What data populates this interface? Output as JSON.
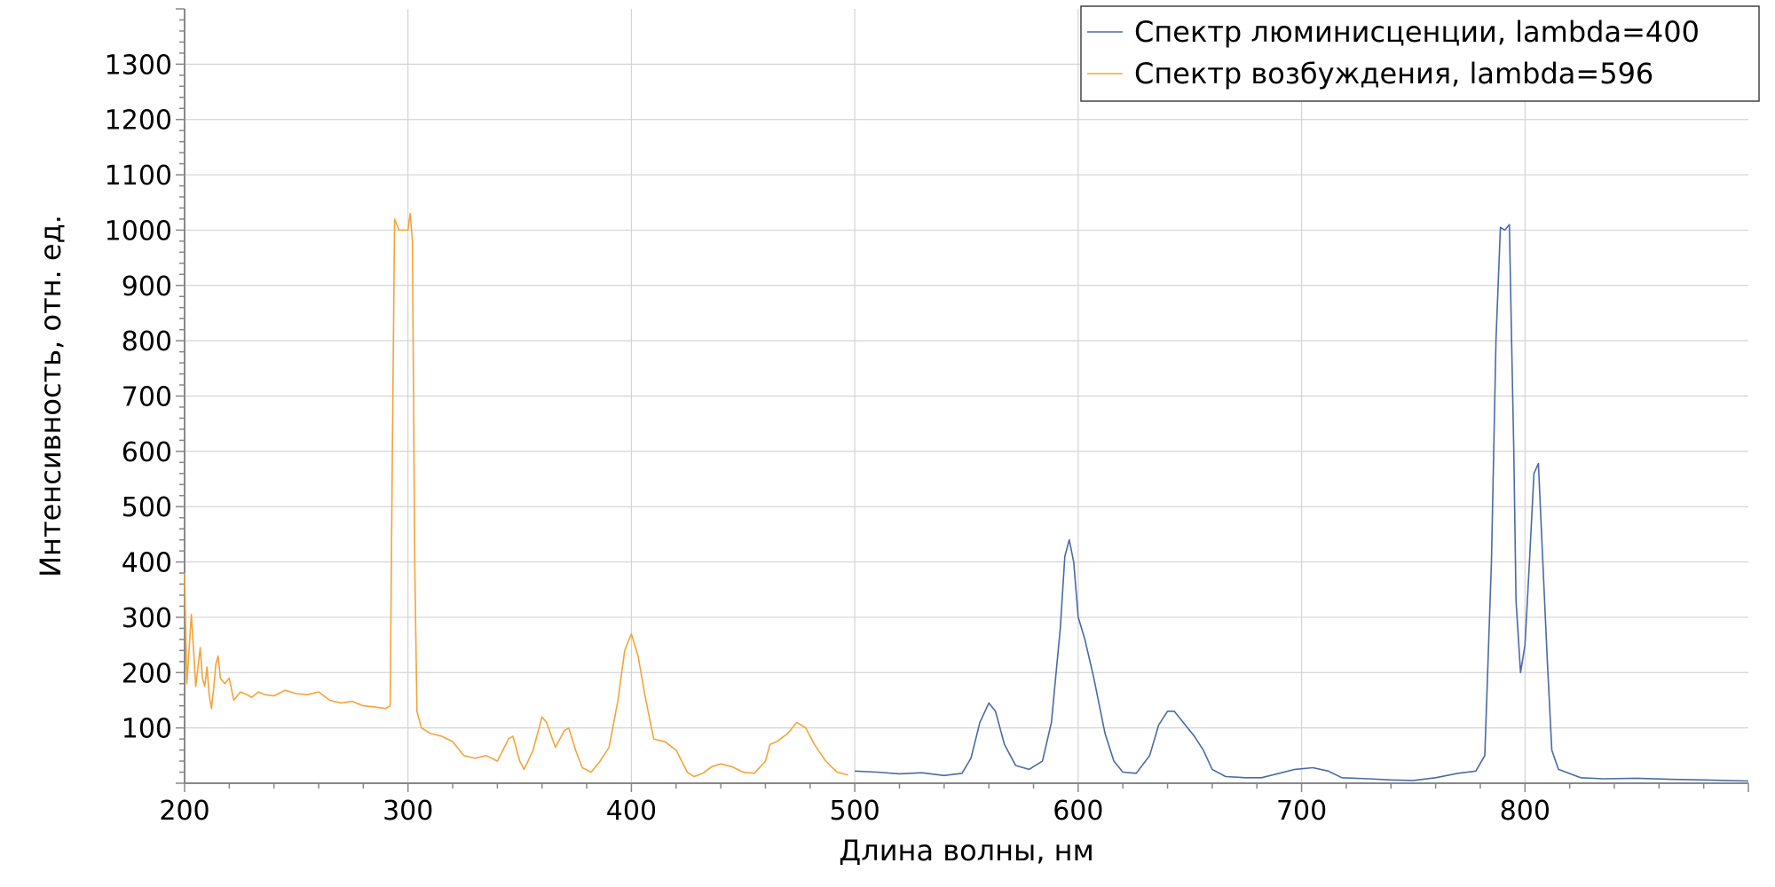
{
  "chart_data": {
    "type": "line",
    "title": "",
    "xlabel": "Длина волны, нм",
    "ylabel": "Интенсивность, отн. ед.",
    "xlim": [
      200,
      900
    ],
    "ylim": [
      0,
      1400
    ],
    "x_ticks": [
      200,
      300,
      400,
      500,
      600,
      700,
      800
    ],
    "y_ticks": [
      100,
      200,
      300,
      400,
      500,
      600,
      700,
      800,
      900,
      1000,
      1100,
      1200,
      1300
    ],
    "grid": true,
    "legend_position": "top-right",
    "series": [
      {
        "name": "Спектр люминисценции, lambda=400",
        "color": "#4a6aa5",
        "points": [
          [
            500,
            22
          ],
          [
            510,
            20
          ],
          [
            520,
            17
          ],
          [
            530,
            19
          ],
          [
            540,
            14
          ],
          [
            548,
            18
          ],
          [
            552,
            45
          ],
          [
            556,
            110
          ],
          [
            560,
            145
          ],
          [
            563,
            130
          ],
          [
            567,
            70
          ],
          [
            572,
            32
          ],
          [
            578,
            25
          ],
          [
            584,
            40
          ],
          [
            588,
            110
          ],
          [
            592,
            280
          ],
          [
            594,
            410
          ],
          [
            596,
            440
          ],
          [
            598,
            400
          ],
          [
            600,
            300
          ],
          [
            603,
            260
          ],
          [
            607,
            190
          ],
          [
            612,
            90
          ],
          [
            616,
            40
          ],
          [
            620,
            20
          ],
          [
            626,
            18
          ],
          [
            632,
            50
          ],
          [
            636,
            105
          ],
          [
            640,
            130
          ],
          [
            643,
            130
          ],
          [
            647,
            110
          ],
          [
            652,
            85
          ],
          [
            656,
            60
          ],
          [
            660,
            25
          ],
          [
            666,
            12
          ],
          [
            675,
            10
          ],
          [
            682,
            10
          ],
          [
            690,
            18
          ],
          [
            697,
            25
          ],
          [
            705,
            28
          ],
          [
            712,
            22
          ],
          [
            718,
            10
          ],
          [
            730,
            8
          ],
          [
            740,
            6
          ],
          [
            750,
            5
          ],
          [
            760,
            10
          ],
          [
            770,
            18
          ],
          [
            778,
            22
          ],
          [
            782,
            50
          ],
          [
            785,
            400
          ],
          [
            787,
            800
          ],
          [
            789,
            1005
          ],
          [
            791,
            1000
          ],
          [
            793,
            1010
          ],
          [
            794,
            800
          ],
          [
            795,
            600
          ],
          [
            796,
            330
          ],
          [
            798,
            200
          ],
          [
            800,
            250
          ],
          [
            802,
            400
          ],
          [
            804,
            560
          ],
          [
            806,
            578
          ],
          [
            808,
            400
          ],
          [
            810,
            220
          ],
          [
            812,
            60
          ],
          [
            815,
            25
          ],
          [
            825,
            10
          ],
          [
            835,
            8
          ],
          [
            850,
            9
          ],
          [
            865,
            7
          ],
          [
            880,
            6
          ],
          [
            890,
            5
          ],
          [
            900,
            4
          ]
        ]
      },
      {
        "name": "Спектр возбуждения, lambda=596",
        "color": "#f5a33a",
        "points": [
          [
            200,
            380
          ],
          [
            201,
            180
          ],
          [
            202,
            240
          ],
          [
            203,
            305
          ],
          [
            204,
            240
          ],
          [
            205,
            175
          ],
          [
            206,
            210
          ],
          [
            207,
            245
          ],
          [
            208,
            190
          ],
          [
            209,
            175
          ],
          [
            210,
            210
          ],
          [
            211,
            160
          ],
          [
            212,
            135
          ],
          [
            213,
            170
          ],
          [
            214,
            215
          ],
          [
            215,
            230
          ],
          [
            216,
            190
          ],
          [
            218,
            180
          ],
          [
            220,
            190
          ],
          [
            222,
            150
          ],
          [
            225,
            165
          ],
          [
            228,
            160
          ],
          [
            230,
            155
          ],
          [
            233,
            165
          ],
          [
            236,
            160
          ],
          [
            240,
            158
          ],
          [
            245,
            168
          ],
          [
            250,
            162
          ],
          [
            255,
            160
          ],
          [
            260,
            165
          ],
          [
            265,
            150
          ],
          [
            270,
            145
          ],
          [
            275,
            148
          ],
          [
            280,
            140
          ],
          [
            285,
            138
          ],
          [
            290,
            135
          ],
          [
            292,
            140
          ],
          [
            293,
            600
          ],
          [
            294,
            1020
          ],
          [
            296,
            1000
          ],
          [
            298,
            1000
          ],
          [
            300,
            1000
          ],
          [
            301,
            1030
          ],
          [
            302,
            980
          ],
          [
            303,
            400
          ],
          [
            304,
            130
          ],
          [
            306,
            100
          ],
          [
            310,
            90
          ],
          [
            315,
            85
          ],
          [
            320,
            75
          ],
          [
            325,
            50
          ],
          [
            330,
            45
          ],
          [
            335,
            50
          ],
          [
            340,
            40
          ],
          [
            345,
            80
          ],
          [
            347,
            85
          ],
          [
            350,
            40
          ],
          [
            352,
            25
          ],
          [
            356,
            60
          ],
          [
            360,
            120
          ],
          [
            362,
            110
          ],
          [
            366,
            65
          ],
          [
            370,
            95
          ],
          [
            372,
            100
          ],
          [
            375,
            60
          ],
          [
            378,
            28
          ],
          [
            382,
            20
          ],
          [
            386,
            40
          ],
          [
            390,
            65
          ],
          [
            394,
            150
          ],
          [
            397,
            240
          ],
          [
            400,
            270
          ],
          [
            403,
            230
          ],
          [
            406,
            160
          ],
          [
            410,
            80
          ],
          [
            415,
            75
          ],
          [
            420,
            60
          ],
          [
            425,
            20
          ],
          [
            428,
            12
          ],
          [
            432,
            18
          ],
          [
            436,
            30
          ],
          [
            440,
            35
          ],
          [
            445,
            30
          ],
          [
            450,
            20
          ],
          [
            455,
            18
          ],
          [
            460,
            40
          ],
          [
            462,
            70
          ],
          [
            465,
            75
          ],
          [
            470,
            90
          ],
          [
            474,
            110
          ],
          [
            478,
            100
          ],
          [
            482,
            70
          ],
          [
            487,
            40
          ],
          [
            492,
            20
          ],
          [
            497,
            15
          ]
        ]
      }
    ]
  }
}
